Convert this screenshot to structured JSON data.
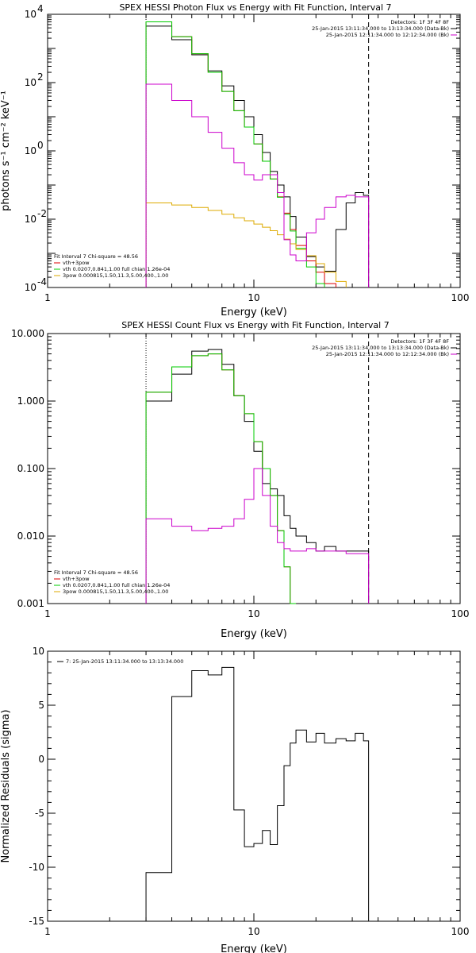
{
  "chart_data": [
    {
      "type": "line",
      "title": "SPEX HESSI Photon Flux vs Energy with Fit Function, Interval 7",
      "xlabel": "Energy (keV)",
      "ylabel": "photons s⁻¹ cm⁻² keV⁻¹",
      "xscale": "log",
      "yscale": "log",
      "xlim": [
        1,
        100
      ],
      "ylim": [
        0.0001,
        10000
      ],
      "xtick_labels": [
        {
          "v": 1,
          "t": "1"
        },
        {
          "v": 10,
          "t": "10"
        },
        {
          "v": 100,
          "t": "100"
        }
      ],
      "ytick_labels": [
        {
          "v": 0.0001,
          "b": "10",
          "e": "-4"
        },
        {
          "v": 0.01,
          "b": "10",
          "e": "-2"
        },
        {
          "v": 1,
          "b": "10",
          "e": "0"
        },
        {
          "v": 100,
          "b": "10",
          "e": "2"
        },
        {
          "v": 10000,
          "b": "10",
          "e": "4"
        }
      ],
      "legend_topright": {
        "header": "Detectors: 1F 3F 4F 8F",
        "entries": [
          {
            "text": "25-Jan-2015 13:11:34.000 to 13:13:34.000 (Data-Bk)",
            "color": "#000000"
          },
          {
            "text": "25-Jan-2015 12:11:34.000 to 12:12:34.000 (Bk)",
            "color": "#cc00cc"
          }
        ]
      },
      "legend_bottomleft": {
        "header": "Fit Interval  7    Chi-square = 48.56",
        "entries": [
          {
            "text": "vth+3pow",
            "color": "#dd0000"
          },
          {
            "text": "vth 0.0207,0.841,1.00  full chian 1.26e-04",
            "color": "#00cc00"
          },
          {
            "text": "3pow 0.000815,1.50,11.3,5.00,400.,1.00",
            "color": "#ddaa00"
          }
        ]
      },
      "vlines": [
        {
          "x": 3,
          "style": "dotted",
          "color": "#000000"
        },
        {
          "x": 36,
          "style": "dashed",
          "color": "#000000"
        }
      ],
      "edges": [
        3,
        4,
        5,
        6,
        7,
        8,
        9,
        10,
        11,
        12,
        13,
        14,
        15,
        16,
        18,
        20,
        22,
        25,
        28,
        31,
        34,
        36
      ],
      "series": [
        {
          "name": "Data-Bk",
          "color": "#000000",
          "values": [
            4500,
            1800,
            650,
            220,
            80,
            30,
            10,
            3,
            0.9,
            0.25,
            0.1,
            0.045,
            0.012,
            0.003,
            0.0008,
            0.0004,
            0.0003,
            0.005,
            0.03,
            0.06,
            0.05
          ]
        },
        {
          "name": "vth+3pow",
          "color": "#dd0000",
          "values": [
            6000,
            2200,
            700,
            200,
            55,
            15,
            5,
            1.6,
            0.5,
            0.15,
            0.045,
            0.015,
            0.005,
            0.0017,
            0.0006,
            0.00028,
            0.00013,
            null,
            null,
            null,
            null
          ]
        },
        {
          "name": "vth",
          "color": "#00cc00",
          "values": [
            6000,
            2200,
            700,
            200,
            55,
            15,
            5,
            1.6,
            0.5,
            0.15,
            0.044,
            0.014,
            0.0045,
            0.0014,
            0.0004,
            0.00013,
            null,
            null,
            null,
            null,
            null
          ]
        },
        {
          "name": "3pow",
          "color": "#ddaa00",
          "values": [
            0.03,
            0.026,
            0.022,
            0.018,
            0.014,
            0.011,
            0.009,
            0.0072,
            0.0058,
            0.0046,
            0.0035,
            0.0026,
            0.0019,
            0.0013,
            0.00085,
            0.0005,
            0.00028,
            0.00015,
            null,
            null,
            null
          ]
        },
        {
          "name": "Bk",
          "color": "#cc00cc",
          "values": [
            90,
            30,
            10,
            3.5,
            1.2,
            0.45,
            0.2,
            0.14,
            0.2,
            0.2,
            0.06,
            0.0025,
            0.0009,
            0.0006,
            0.004,
            0.01,
            0.022,
            0.045,
            0.05,
            0.045,
            0.045
          ]
        }
      ]
    },
    {
      "type": "line",
      "title": "SPEX HESSI Count Flux vs Energy with Fit Function, Interval 7",
      "xlabel": "Energy (keV)",
      "ylabel": "",
      "xscale": "log",
      "yscale": "log",
      "xlim": [
        1,
        100
      ],
      "ylim": [
        0.001,
        10
      ],
      "xtick_labels": [
        {
          "v": 1,
          "t": "1"
        },
        {
          "v": 10,
          "t": "10"
        },
        {
          "v": 100,
          "t": "100"
        }
      ],
      "ytick_labels": [
        {
          "v": 0.001,
          "t": "0.001"
        },
        {
          "v": 0.01,
          "t": "0.010"
        },
        {
          "v": 0.1,
          "t": "0.100"
        },
        {
          "v": 1,
          "t": "1.000"
        },
        {
          "v": 10,
          "t": "10.000"
        }
      ],
      "legend_topright": {
        "header": "Detectors: 1F 3F 4F 8F",
        "entries": [
          {
            "text": "25-Jan-2015 13:11:34.000 to 13:13:34.000 (Data-Bk)",
            "color": "#000000"
          },
          {
            "text": "25-Jan-2015 12:11:34.000 to 12:12:34.000 (Bk)",
            "color": "#cc00cc"
          }
        ]
      },
      "legend_bottomleft": {
        "header": "Fit Interval  7    Chi-square = 48.56",
        "entries": [
          {
            "text": "vth+3pow",
            "color": "#dd0000"
          },
          {
            "text": "vth 0.0207,0.841,1.00  full chian 1.26e-04",
            "color": "#00cc00"
          },
          {
            "text": "3pow 0.000815,1.50,11.3,5.00,400.,1.00",
            "color": "#ddaa00"
          }
        ]
      },
      "vlines": [
        {
          "x": 3,
          "style": "dotted",
          "color": "#000000"
        },
        {
          "x": 36,
          "style": "dashed",
          "color": "#000000"
        }
      ],
      "edges": [
        3,
        4,
        5,
        6,
        7,
        8,
        9,
        10,
        11,
        12,
        13,
        14,
        15,
        16,
        18,
        20,
        22,
        25,
        28,
        31,
        34,
        36
      ],
      "series": [
        {
          "name": "Data-Bk",
          "color": "#000000",
          "values": [
            1.0,
            2.5,
            5.5,
            5.8,
            3.5,
            1.2,
            0.5,
            0.18,
            0.06,
            0.05,
            0.04,
            0.02,
            0.013,
            0.01,
            0.008,
            0.006,
            0.007,
            0.006,
            0.006,
            0.006,
            0.006
          ]
        },
        {
          "name": "vth+3pow",
          "color": "#dd0000",
          "values": [
            1.35,
            3.2,
            4.7,
            5.0,
            2.9,
            1.2,
            0.65,
            0.25,
            0.1,
            0.04,
            0.012,
            0.0035,
            0.001,
            null,
            null,
            null,
            null,
            null,
            null,
            null,
            null
          ]
        },
        {
          "name": "vth",
          "color": "#00cc00",
          "values": [
            1.35,
            3.2,
            4.7,
            5.0,
            2.9,
            1.2,
            0.65,
            0.25,
            0.1,
            0.04,
            0.012,
            0.0035,
            0.001,
            null,
            null,
            null,
            null,
            null,
            null,
            null,
            null
          ]
        },
        {
          "name": "Bk",
          "color": "#cc00cc",
          "values": [
            0.018,
            0.014,
            0.012,
            0.013,
            0.014,
            0.018,
            0.035,
            0.1,
            0.04,
            0.014,
            0.008,
            0.0065,
            0.006,
            0.006,
            0.0065,
            0.006,
            0.006,
            0.006,
            0.0055,
            0.0055,
            0.0055
          ]
        }
      ]
    },
    {
      "type": "line",
      "title": "",
      "xlabel": "Energy (keV)",
      "ylabel": "Normalized Residuals (sigma)",
      "xscale": "log",
      "yscale": "linear",
      "xlim": [
        1,
        100
      ],
      "ylim": [
        -15,
        10
      ],
      "xtick_labels": [
        {
          "v": 1,
          "t": "1"
        },
        {
          "v": 10,
          "t": "10"
        },
        {
          "v": 100,
          "t": "100"
        }
      ],
      "ytick_labels": [
        {
          "v": 10,
          "t": "10"
        },
        {
          "v": 5,
          "t": "5"
        },
        {
          "v": 0,
          "t": "0"
        },
        {
          "v": -5,
          "t": "-5"
        },
        {
          "v": -10,
          "t": "-10"
        },
        {
          "v": -15,
          "t": "-15"
        }
      ],
      "legend_topleft": {
        "entries": [
          {
            "text": "7: 25-Jan-2015 13:11:34.000 to 13:13:34.000",
            "color": "#000000"
          }
        ]
      },
      "edges": [
        3,
        4,
        5,
        6,
        7,
        8,
        9,
        10,
        11,
        12,
        13,
        14,
        15,
        16,
        18,
        20,
        22,
        25,
        28,
        31,
        34,
        36
      ],
      "series": [
        {
          "name": "7: 25-Jan-2015 13:11:34.000 to 13:13:34.000",
          "color": "#000000",
          "values": [
            -10.5,
            5.8,
            8.2,
            7.8,
            8.5,
            -4.7,
            -8.1,
            -7.8,
            -6.6,
            -7.9,
            -4.3,
            -0.6,
            1.5,
            2.7,
            1.6,
            2.4,
            1.5,
            1.9,
            1.7,
            2.4,
            1.7
          ]
        }
      ]
    }
  ]
}
